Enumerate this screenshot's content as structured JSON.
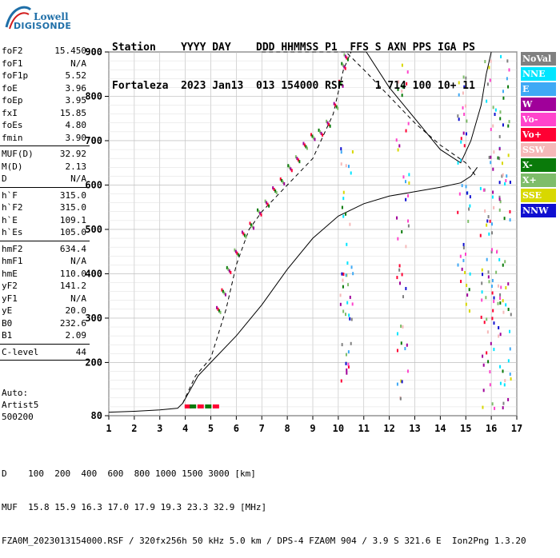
{
  "logo": {
    "line1": "Lowell",
    "line2": "DIGISONDE"
  },
  "header": {
    "labels": "Station    YYYY DAY    DDD HHMMSS P1  FFS S AXN PPS IGA PS",
    "values": "Fortaleza  2023 Jan13  013 154000 RSF     1 714 100 10+ 11"
  },
  "params_group1": [
    {
      "k": "foF2",
      "v": "15.450"
    },
    {
      "k": "foF1",
      "v": "N/A"
    },
    {
      "k": "foF1p",
      "v": "5.52"
    },
    {
      "k": "foE",
      "v": "3.96"
    },
    {
      "k": "foEp",
      "v": "3.95"
    },
    {
      "k": "fxI",
      "v": "15.85"
    },
    {
      "k": "foEs",
      "v": "4.80"
    },
    {
      "k": "fmin",
      "v": "3.90"
    }
  ],
  "params_group2": [
    {
      "k": "MUF(D)",
      "v": "32.92"
    },
    {
      "k": "M(D)",
      "v": "2.13"
    },
    {
      "k": "D",
      "v": "N/A"
    }
  ],
  "params_group3": [
    {
      "k": "h`F",
      "v": "315.0"
    },
    {
      "k": "h`F2",
      "v": "315.0"
    },
    {
      "k": "h`E",
      "v": "109.1"
    },
    {
      "k": "h`Es",
      "v": "105.0"
    }
  ],
  "params_group4": [
    {
      "k": "hmF2",
      "v": "634.4"
    },
    {
      "k": "hmF1",
      "v": "N/A"
    },
    {
      "k": "hmE",
      "v": "110.0"
    },
    {
      "k": "yF2",
      "v": "141.2"
    },
    {
      "k": "yF1",
      "v": "N/A"
    },
    {
      "k": "yE",
      "v": "20.0"
    },
    {
      "k": "B0",
      "v": "232.6"
    },
    {
      "k": "B1",
      "v": "2.09"
    }
  ],
  "params_group5": [
    {
      "k": "C-level",
      "v": "44"
    }
  ],
  "auto": {
    "line1": "Auto:",
    "line2": "Artist5",
    "line3": "500200"
  },
  "bottom": {
    "d_line": "D    100  200  400  600  800 1000 1500 3000 [km]",
    "muf_line": "MUF  15.8 15.9 16.3 17.0 17.9 19.3 23.3 32.9 [MHz]",
    "file_line": "FZA0M_2023013154000.RSF / 320fx256h 50 kHz 5.0 km / DPS-4 FZA0M 904 / 3.9 S 321.6 E  Ion2Png 1.3.20"
  },
  "legend": [
    {
      "label": "NoVal",
      "color": "#808080"
    },
    {
      "label": "NNE",
      "color": "#00e5ff"
    },
    {
      "label": "E",
      "color": "#3fa9f5"
    },
    {
      "label": "W",
      "color": "#a0009a"
    },
    {
      "label": "Vo-",
      "color": "#ff44cc"
    },
    {
      "label": "Vo+",
      "color": "#ff0033"
    },
    {
      "label": "SSW",
      "color": "#f5b8b8"
    },
    {
      "label": "X-",
      "color": "#0a7a0a"
    },
    {
      "label": "X+",
      "color": "#7ebd6a"
    },
    {
      "label": "SSE",
      "color": "#d8d800"
    },
    {
      "label": "NNW",
      "color": "#1010d0"
    }
  ],
  "chart_data": {
    "type": "scatter",
    "xlabel": "",
    "ylabel": "",
    "xlim": [
      1,
      17
    ],
    "ylim": [
      80,
      900
    ],
    "x_ticks": [
      1,
      2,
      3,
      4,
      5,
      6,
      7,
      8,
      9,
      10,
      11,
      12,
      13,
      14,
      15,
      16,
      17
    ],
    "y_ticks": [
      80,
      200,
      300,
      400,
      500,
      600,
      700,
      800,
      900
    ],
    "grid": true,
    "series": [
      {
        "type": "line-solid",
        "values": [
          [
            1,
            88
          ],
          [
            2,
            90
          ],
          [
            3,
            93
          ],
          [
            3.7,
            97
          ],
          [
            3.9,
            108
          ],
          [
            4.5,
            170
          ],
          [
            5,
            200
          ],
          [
            6,
            260
          ],
          [
            7,
            330
          ],
          [
            8,
            410
          ],
          [
            9,
            480
          ],
          [
            10,
            530
          ],
          [
            11,
            558
          ],
          [
            12,
            575
          ],
          [
            13,
            585
          ],
          [
            14,
            595
          ],
          [
            14.8,
            605
          ],
          [
            15.2,
            620
          ],
          [
            15.45,
            640
          ]
        ]
      },
      {
        "type": "line-dashed",
        "values": [
          [
            3.9,
            108
          ],
          [
            4.4,
            170
          ],
          [
            5,
            210
          ],
          [
            5.6,
            320
          ],
          [
            6,
            420
          ],
          [
            6.5,
            500
          ],
          [
            7,
            540
          ],
          [
            8,
            600
          ],
          [
            9,
            660
          ],
          [
            9.8,
            760
          ],
          [
            10.2,
            860
          ],
          [
            10.5,
            900
          ]
        ]
      },
      {
        "type": "line-dashed-upper",
        "values": [
          [
            7,
            900
          ],
          [
            9,
            900
          ],
          [
            10.3,
            900
          ],
          [
            11,
            860
          ],
          [
            12,
            800
          ],
          [
            13,
            740
          ],
          [
            14,
            690
          ],
          [
            15,
            650
          ],
          [
            15.4,
            620
          ]
        ]
      },
      {
        "type": "line-solid-upper",
        "values": [
          [
            10.3,
            900
          ],
          [
            11.1,
            900
          ],
          [
            12,
            820
          ],
          [
            13,
            750
          ],
          [
            14,
            680
          ],
          [
            14.8,
            650
          ],
          [
            15.2,
            700
          ],
          [
            15.6,
            780
          ],
          [
            15.8,
            850
          ],
          [
            16,
            900
          ]
        ]
      },
      {
        "type": "points-O-trace",
        "values": [
          [
            5.3,
            320
          ],
          [
            5.5,
            360
          ],
          [
            5.7,
            410
          ],
          [
            6,
            450
          ],
          [
            6.3,
            490
          ],
          [
            6.6,
            510
          ],
          [
            6.9,
            540
          ],
          [
            7.2,
            560
          ],
          [
            7.5,
            590
          ],
          [
            7.8,
            610
          ],
          [
            8.1,
            640
          ],
          [
            8.4,
            660
          ],
          [
            8.7,
            690
          ],
          [
            9,
            710
          ],
          [
            9.3,
            720
          ],
          [
            9.6,
            740
          ],
          [
            9.9,
            780
          ],
          [
            10.1,
            830
          ],
          [
            10.2,
            870
          ],
          [
            10.3,
            890
          ]
        ]
      },
      {
        "type": "points-Es",
        "values": [
          [
            4.1,
            100
          ],
          [
            4.3,
            100
          ],
          [
            4.6,
            100
          ],
          [
            4.9,
            100
          ],
          [
            5.2,
            100
          ]
        ]
      }
    ]
  }
}
